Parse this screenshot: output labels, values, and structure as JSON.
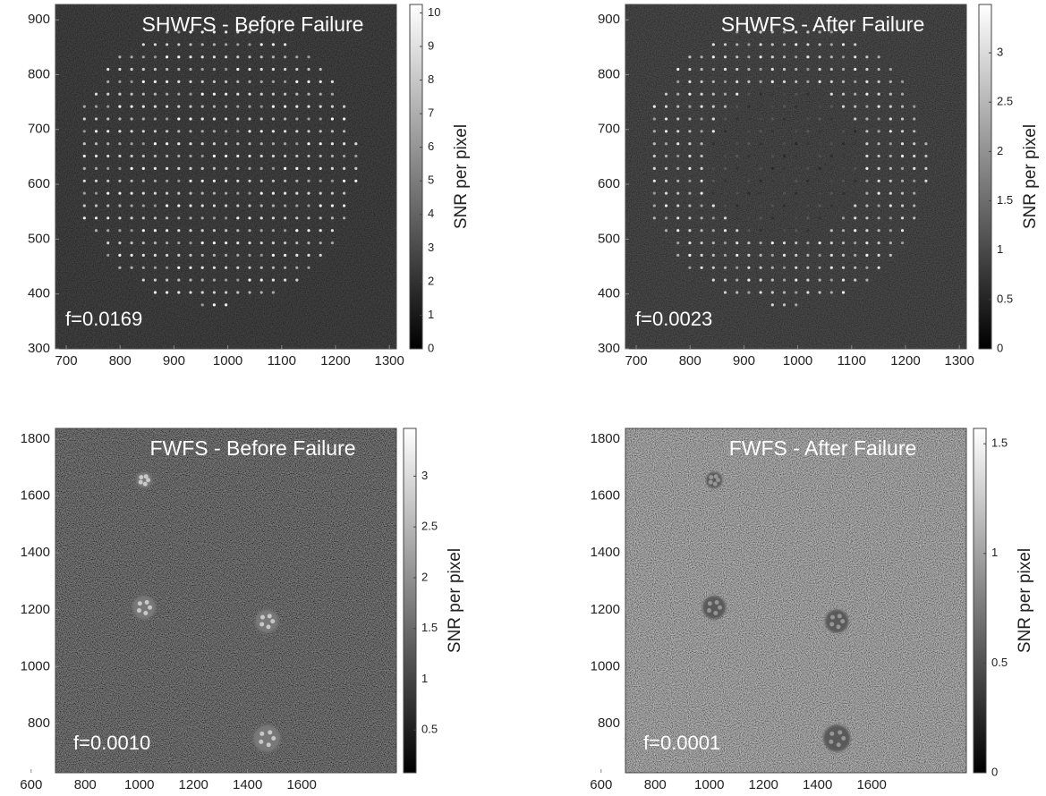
{
  "chart_data": [
    {
      "type": "image",
      "title": "SHWFS - Before Failure",
      "annotation": "f=0.0169",
      "colorbar_label": "SNR per pixel",
      "colormap": "gray",
      "xlim": [
        680,
        1313
      ],
      "ylim": [
        300,
        928
      ],
      "xticks": [
        700,
        800,
        900,
        1000,
        1100,
        1200,
        1300
      ],
      "yticks": [
        300,
        400,
        500,
        600,
        700,
        800,
        900
      ],
      "clim": [
        0,
        10.25
      ],
      "cticks": [
        0,
        1,
        2,
        3,
        4,
        5,
        6,
        7,
        8,
        9,
        10
      ]
    },
    {
      "type": "image",
      "title": "SHWFS - After Failure",
      "annotation": "f=0.0023",
      "colorbar_label": "SNR per pixel",
      "colormap": "gray",
      "xlim": [
        680,
        1313
      ],
      "ylim": [
        300,
        928
      ],
      "xticks": [
        700,
        800,
        900,
        1000,
        1100,
        1200,
        1300
      ],
      "yticks": [
        300,
        400,
        500,
        600,
        700,
        800,
        900
      ],
      "clim": [
        0,
        3.49
      ],
      "cticks": [
        0,
        0.5,
        1,
        1.5,
        2,
        2.5,
        3
      ]
    },
    {
      "type": "image",
      "title": "FWFS - Before Failure",
      "annotation": "f=0.0010",
      "colorbar_label": "SNR per pixel",
      "colormap": "gray",
      "xlim": [
        690,
        1950
      ],
      "ylim": [
        627,
        1838
      ],
      "xticks": [
        600,
        800,
        1000,
        1200,
        1400,
        1600
      ],
      "yticks": [
        800,
        1000,
        1200,
        1400,
        1600,
        1800
      ],
      "clim": [
        0.08,
        3.47
      ],
      "cticks": [
        0.5,
        1,
        1.5,
        2,
        2.5,
        3
      ]
    },
    {
      "type": "image",
      "title": "FWFS - After Failure",
      "annotation": "f=0.0001",
      "colorbar_label": "SNR per pixel",
      "colormap": "gray",
      "xlim": [
        690,
        1950
      ],
      "ylim": [
        627,
        1838
      ],
      "xticks": [
        600,
        800,
        1000,
        1200,
        1400,
        1600
      ],
      "yticks": [
        800,
        1000,
        1200,
        1400,
        1600,
        1800
      ],
      "clim": [
        0,
        1.57
      ],
      "cticks": [
        0,
        0.5,
        1,
        1.5
      ]
    }
  ]
}
